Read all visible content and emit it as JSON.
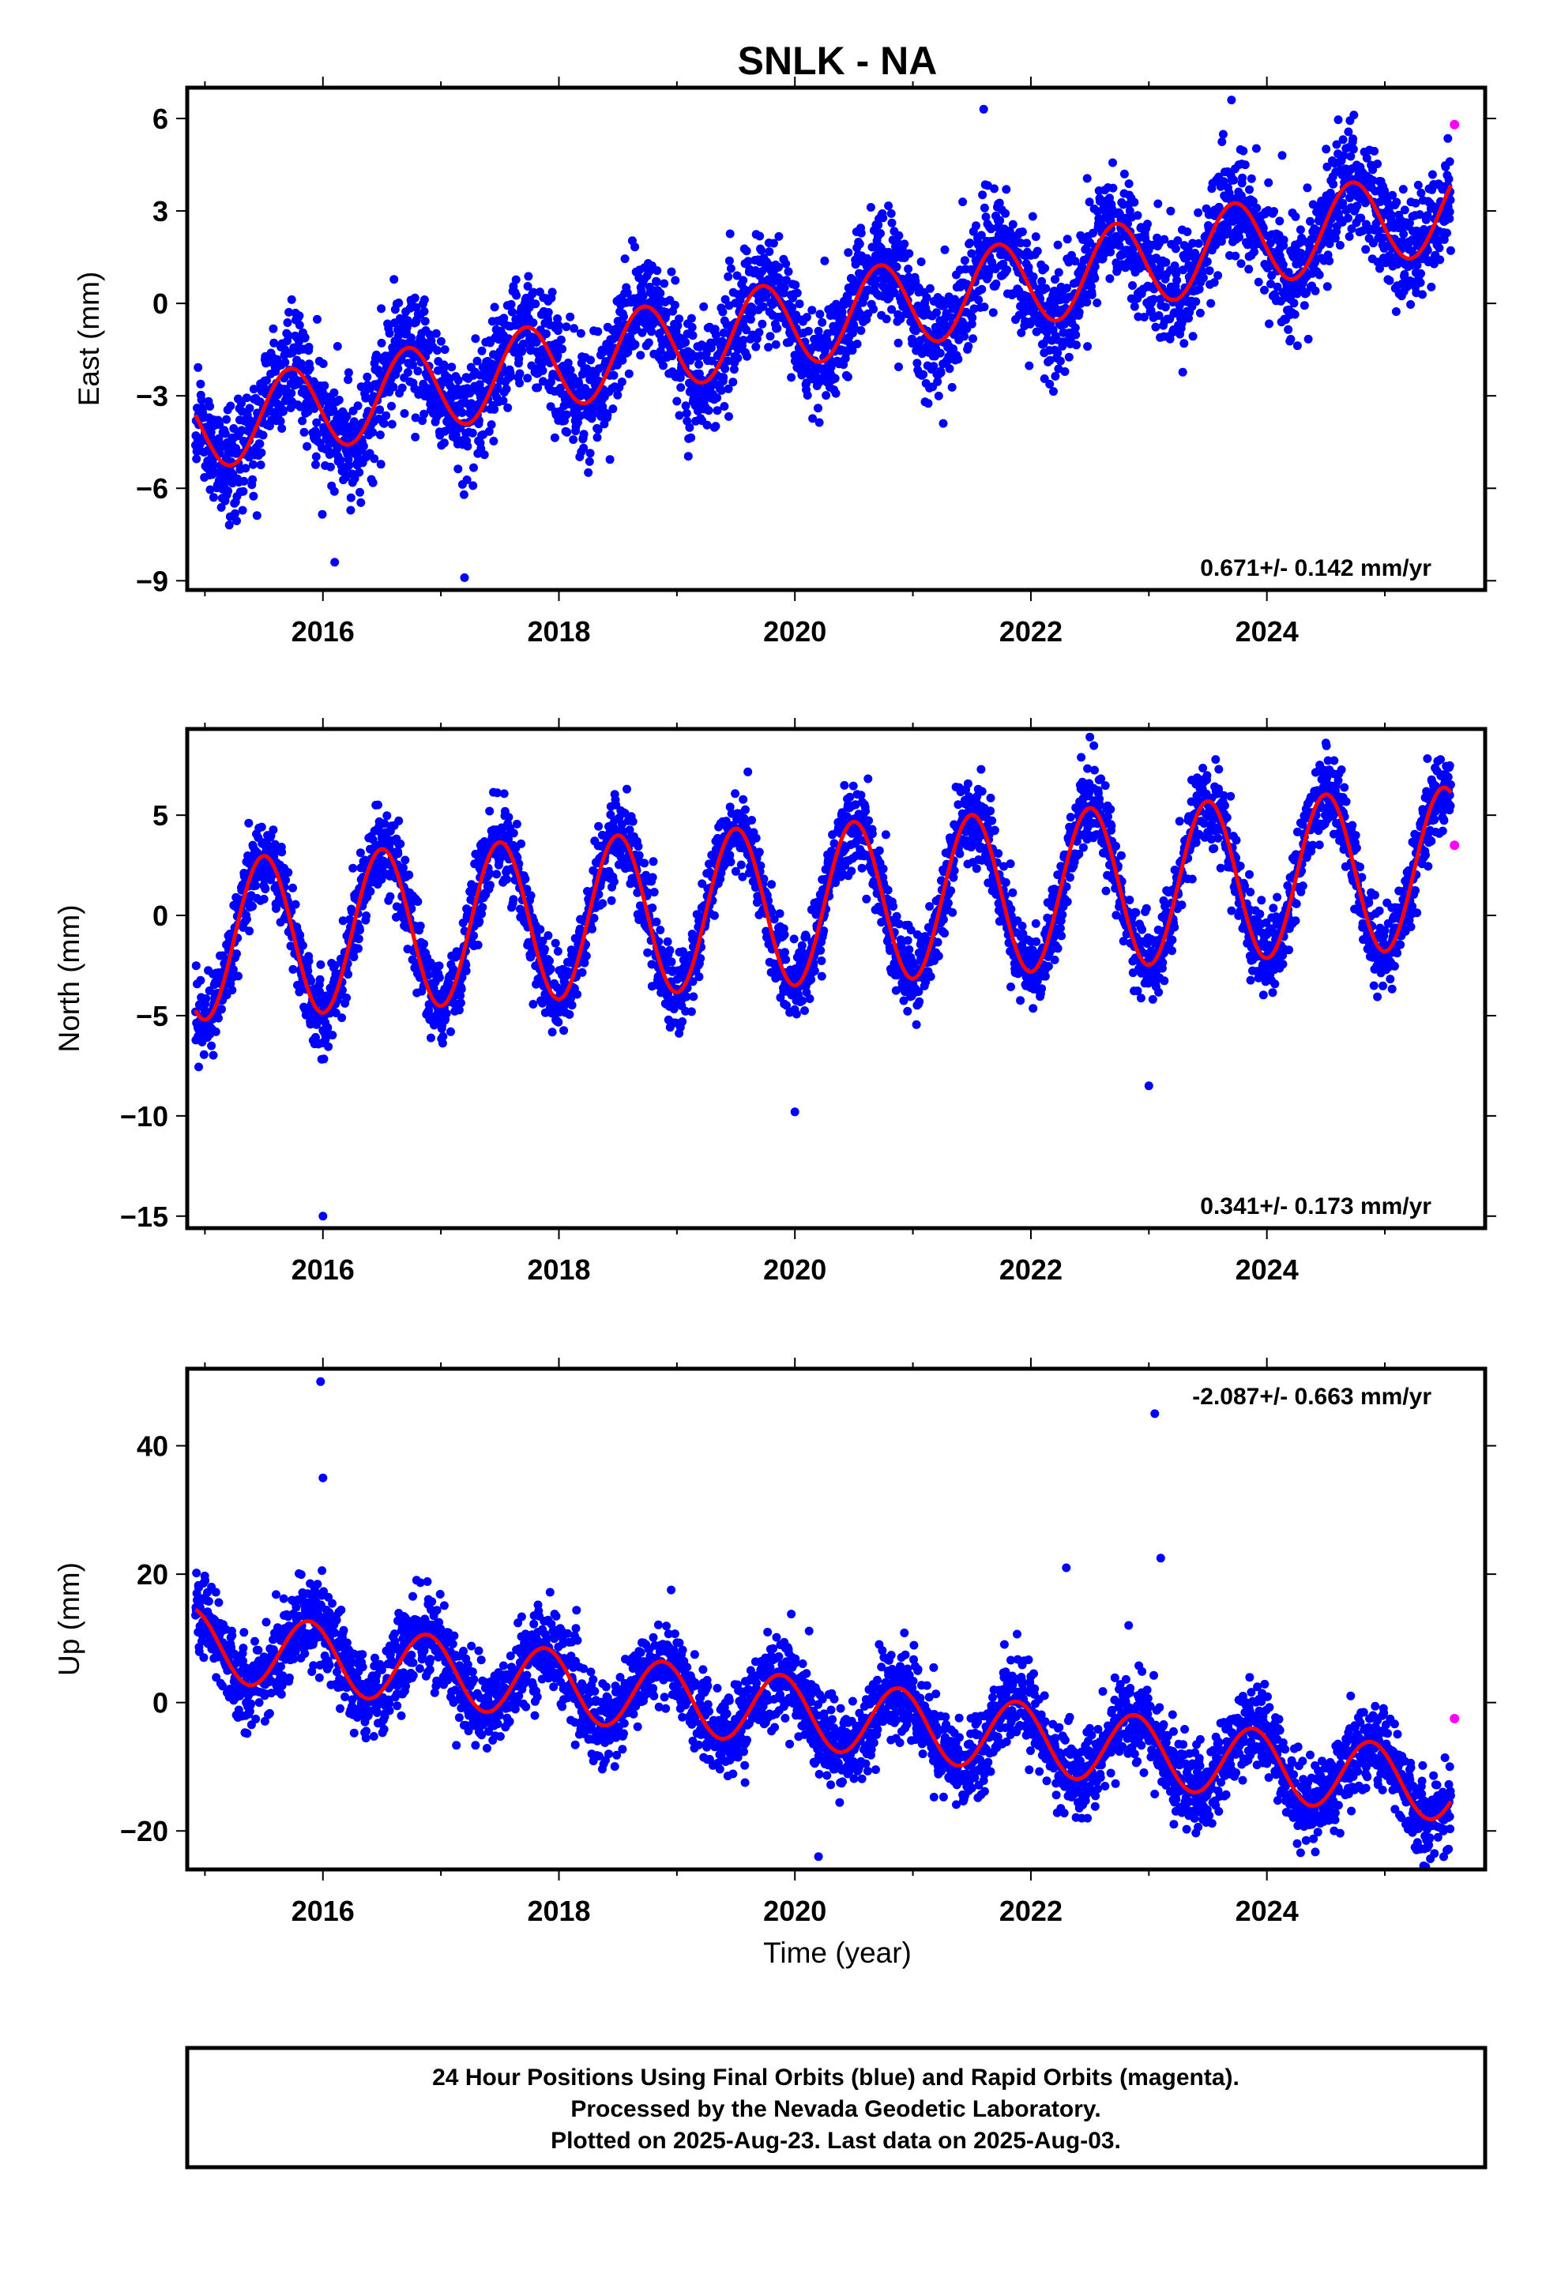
{
  "title": "SNLK - NA",
  "colors": {
    "final": "#0000ff",
    "rapid": "#ff00ff",
    "model": "#ff0000",
    "axis": "#000000"
  },
  "footer": {
    "line1": "24 Hour Positions Using Final Orbits (blue) and Rapid Orbits (magenta).",
    "line2": "Processed by the Nevada Geodetic Laboratory.",
    "line3": "Plotted on 2025-Aug-23. Last data on 2025-Aug-03."
  },
  "chart_data": [
    {
      "type": "scatter",
      "ylabel": "East (mm)",
      "xlabel": "",
      "xlim": [
        2014.85,
        2025.85
      ],
      "ylim": [
        -9.3,
        7.0
      ],
      "xticks": [
        2016,
        2018,
        2020,
        2022,
        2024
      ],
      "yticks": [
        6,
        3,
        0,
        -3,
        -6,
        -9
      ],
      "rate_label": "0.671+/- 0.142 mm/yr",
      "legend": "none",
      "grid": false,
      "model": {
        "type": "line",
        "color": "red",
        "trend_mm_per_yr": 0.671,
        "value_at_2015": -4.0,
        "annual_amplitude_mm": 1.4,
        "peak_phase_year_fraction": 0.72
      },
      "series": [
        {
          "color": "blue",
          "estimated_values": [
            {
              "x": 2015.0,
              "y": -4.2
            },
            {
              "x": 2015.7,
              "y": -1.6
            },
            {
              "x": 2016.3,
              "y": -4.8
            },
            {
              "x": 2016.1,
              "y": -8.4
            },
            {
              "x": 2016.7,
              "y": -1.0
            },
            {
              "x": 2017.2,
              "y": -3.0
            },
            {
              "x": 2017.2,
              "y": -8.9
            },
            {
              "x": 2017.7,
              "y": -0.3
            },
            {
              "x": 2018.2,
              "y": -2.3
            },
            {
              "x": 2018.7,
              "y": 0.3
            },
            {
              "x": 2019.2,
              "y": -1.7
            },
            {
              "x": 2019.7,
              "y": 0.9
            },
            {
              "x": 2020.2,
              "y": -0.9
            },
            {
              "x": 2020.7,
              "y": 1.6
            },
            {
              "x": 2021.2,
              "y": -0.3
            },
            {
              "x": 2021.6,
              "y": 6.3
            },
            {
              "x": 2022.2,
              "y": 0.4
            },
            {
              "x": 2022.7,
              "y": 2.9
            },
            {
              "x": 2023.2,
              "y": 1.1
            },
            {
              "x": 2023.7,
              "y": 6.6
            },
            {
              "x": 2024.2,
              "y": 1.7
            },
            {
              "x": 2024.7,
              "y": 4.3
            },
            {
              "x": 2025.2,
              "y": 2.5
            },
            {
              "x": 2025.55,
              "y": 4.6
            }
          ]
        },
        {
          "color": "magenta",
          "values": [
            {
              "x": 2025.59,
              "y": 5.8
            }
          ]
        }
      ]
    },
    {
      "type": "scatter",
      "ylabel": "North (mm)",
      "xlabel": "",
      "xlim": [
        2014.85,
        2025.85
      ],
      "ylim": [
        -15.6,
        9.3
      ],
      "xticks": [
        2016,
        2018,
        2020,
        2022,
        2024
      ],
      "yticks": [
        5,
        0,
        -5,
        -10,
        -15
      ],
      "rate_label": "0.341+/- 0.173 mm/yr",
      "legend": "none",
      "grid": false,
      "model": {
        "type": "line",
        "color": "red",
        "trend_mm_per_yr": 0.341,
        "value_at_2015": -1.2,
        "annual_amplitude_mm": 4.0,
        "peak_phase_year_fraction": 0.5
      },
      "series": [
        {
          "color": "blue",
          "estimated_values": [
            {
              "x": 2014.95,
              "y": -5.5
            },
            {
              "x": 2015.5,
              "y": 2.8
            },
            {
              "x": 2016.0,
              "y": -5.2
            },
            {
              "x": 2016.0,
              "y": -15.0
            },
            {
              "x": 2016.5,
              "y": 3.2
            },
            {
              "x": 2017.0,
              "y": -4.7
            },
            {
              "x": 2017.5,
              "y": 3.5
            },
            {
              "x": 2018.0,
              "y": -4.5
            },
            {
              "x": 2018.5,
              "y": 3.8
            },
            {
              "x": 2019.0,
              "y": -4.2
            },
            {
              "x": 2019.5,
              "y": 4.1
            },
            {
              "x": 2020.0,
              "y": -3.9
            },
            {
              "x": 2020.0,
              "y": -9.8
            },
            {
              "x": 2020.5,
              "y": 4.4
            },
            {
              "x": 2021.0,
              "y": -3.5
            },
            {
              "x": 2021.5,
              "y": 4.8
            },
            {
              "x": 2022.0,
              "y": -3.2
            },
            {
              "x": 2022.5,
              "y": 8.9
            },
            {
              "x": 2023.0,
              "y": -2.8
            },
            {
              "x": 2023.0,
              "y": -8.5
            },
            {
              "x": 2023.5,
              "y": 5.5
            },
            {
              "x": 2024.0,
              "y": -2.5
            },
            {
              "x": 2024.5,
              "y": 8.6
            },
            {
              "x": 2025.0,
              "y": -2.2
            },
            {
              "x": 2025.55,
              "y": 6.0
            }
          ]
        },
        {
          "color": "magenta",
          "values": [
            {
              "x": 2025.59,
              "y": 3.5
            }
          ]
        }
      ]
    },
    {
      "type": "scatter",
      "ylabel": "Up (mm)",
      "xlabel": "Time (year)",
      "xlim": [
        2014.85,
        2025.85
      ],
      "ylim": [
        -26.0,
        52.0
      ],
      "xticks": [
        2016,
        2018,
        2020,
        2022,
        2024
      ],
      "yticks": [
        40,
        20,
        0,
        -20
      ],
      "rate_label": "-2.087+/- 0.663 mm/yr",
      "legend": "none",
      "grid": false,
      "model": {
        "type": "line",
        "color": "red",
        "trend_mm_per_yr": -2.087,
        "value_at_2015": 9.0,
        "annual_amplitude_mm": 5.5,
        "peak_phase_year_fraction": 0.88
      },
      "series": [
        {
          "color": "blue",
          "estimated_values": [
            {
              "x": 2014.95,
              "y": 15.5
            },
            {
              "x": 2015.4,
              "y": 5.0
            },
            {
              "x": 2015.9,
              "y": 14.0
            },
            {
              "x": 2015.98,
              "y": 50.0
            },
            {
              "x": 2016.0,
              "y": 35.0
            },
            {
              "x": 2016.4,
              "y": 3.0
            },
            {
              "x": 2016.9,
              "y": 12.0
            },
            {
              "x": 2017.4,
              "y": 1.0
            },
            {
              "x": 2017.9,
              "y": 10.0
            },
            {
              "x": 2018.4,
              "y": -1.5
            },
            {
              "x": 2018.9,
              "y": 8.0
            },
            {
              "x": 2019.4,
              "y": -3.5
            },
            {
              "x": 2019.9,
              "y": 5.5
            },
            {
              "x": 2020.2,
              "y": -24.0
            },
            {
              "x": 2020.4,
              "y": -6.0
            },
            {
              "x": 2020.9,
              "y": 3.5
            },
            {
              "x": 2021.4,
              "y": -8.0
            },
            {
              "x": 2021.9,
              "y": 1.5
            },
            {
              "x": 2022.3,
              "y": 21.0
            },
            {
              "x": 2022.4,
              "y": -10.0
            },
            {
              "x": 2022.9,
              "y": -0.5
            },
            {
              "x": 2023.05,
              "y": 45.0
            },
            {
              "x": 2023.1,
              "y": 22.5
            },
            {
              "x": 2023.4,
              "y": -12.0
            },
            {
              "x": 2023.9,
              "y": -2.5
            },
            {
              "x": 2024.4,
              "y": -14.0
            },
            {
              "x": 2024.9,
              "y": -4.5
            },
            {
              "x": 2025.4,
              "y": -16.0
            },
            {
              "x": 2025.55,
              "y": -10.0
            }
          ]
        },
        {
          "color": "magenta",
          "values": [
            {
              "x": 2025.59,
              "y": -2.5
            }
          ]
        }
      ]
    }
  ]
}
